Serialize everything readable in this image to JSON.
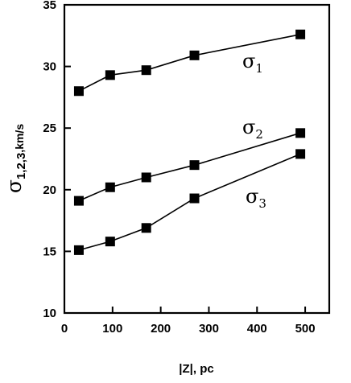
{
  "chart_data": {
    "type": "line",
    "title": "",
    "xlabel": "|Z|, pc",
    "ylabel": {
      "symbol": "σ",
      "subscript": "1,2,3",
      "unit": ",km/s"
    },
    "xlim": [
      0,
      550
    ],
    "ylim": [
      10,
      35
    ],
    "xticks": [
      "0",
      "100",
      "200",
      "300",
      "400",
      "500"
    ],
    "yticks": [
      "10",
      "15",
      "20",
      "25",
      "30",
      "35"
    ],
    "grid": false,
    "legend": "inline labels next to lines",
    "marker": "filled square",
    "colors": {
      "line": "#000000",
      "marker": "#000000"
    },
    "series": [
      {
        "name": "σ1",
        "symbol": "σ",
        "subscript": "1",
        "x": [
          30,
          95,
          170,
          270,
          490
        ],
        "y": [
          28.0,
          29.3,
          29.7,
          30.9,
          32.6
        ]
      },
      {
        "name": "σ2",
        "symbol": "σ",
        "subscript": "2",
        "x": [
          30,
          95,
          170,
          270,
          490
        ],
        "y": [
          19.1,
          20.2,
          21.0,
          22.0,
          24.6
        ]
      },
      {
        "name": "σ3",
        "symbol": "σ",
        "subscript": "3",
        "x": [
          30,
          95,
          170,
          270,
          490
        ],
        "y": [
          15.1,
          15.8,
          16.9,
          19.3,
          22.9
        ]
      }
    ]
  }
}
